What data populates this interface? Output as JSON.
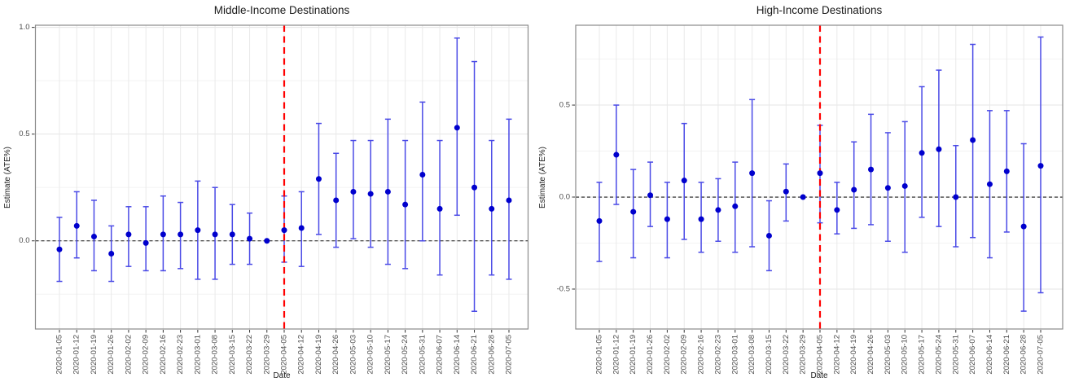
{
  "chart_data": [
    {
      "type": "scatter",
      "title": "Middle-Income Destinations",
      "xlabel": "Date",
      "ylabel": "Estimate (ATE%)",
      "x": [
        "2020-01-05",
        "2020-01-12",
        "2020-01-19",
        "2020-01-26",
        "2020-02-02",
        "2020-02-09",
        "2020-02-16",
        "2020-02-23",
        "2020-03-01",
        "2020-03-08",
        "2020-03-15",
        "2020-03-22",
        "2020-03-29",
        "2020-04-05",
        "2020-04-12",
        "2020-04-19",
        "2020-04-26",
        "2020-05-03",
        "2020-05-10",
        "2020-05-17",
        "2020-05-24",
        "2020-05-31",
        "2020-06-07",
        "2020-06-14",
        "2020-06-21",
        "2020-06-28",
        "2020-07-05"
      ],
      "series": [
        {
          "name": "ATE estimate",
          "values": [
            -0.04,
            0.07,
            0.02,
            -0.06,
            0.03,
            -0.01,
            0.03,
            0.03,
            0.05,
            0.03,
            0.03,
            0.01,
            0.0,
            0.05,
            0.06,
            0.29,
            0.19,
            0.23,
            0.22,
            0.23,
            0.17,
            0.31,
            0.15,
            0.53,
            0.25,
            0.15,
            0.19
          ]
        }
      ],
      "ci_low": [
        -0.19,
        -0.08,
        -0.14,
        -0.19,
        -0.12,
        -0.14,
        -0.14,
        -0.13,
        -0.18,
        -0.18,
        -0.11,
        -0.11,
        null,
        -0.1,
        -0.12,
        0.03,
        -0.03,
        0.01,
        -0.03,
        -0.11,
        -0.13,
        0.0,
        -0.16,
        0.12,
        -0.33,
        -0.16,
        -0.18
      ],
      "ci_high": [
        0.11,
        0.23,
        0.19,
        0.07,
        0.16,
        0.16,
        0.21,
        0.18,
        0.28,
        0.25,
        0.17,
        0.13,
        null,
        0.21,
        0.23,
        0.55,
        0.41,
        0.47,
        0.47,
        0.57,
        0.47,
        0.65,
        0.47,
        0.95,
        0.84,
        0.47,
        0.57
      ],
      "reference_date": "2020-03-29",
      "vline_date": "2020-04-05",
      "hline": 0,
      "ylim": [
        -0.413,
        1.01
      ],
      "yticks": [
        {
          "value": 0.0,
          "label": "0.0"
        },
        {
          "value": 0.5,
          "label": "0.5"
        },
        {
          "value": 1.0,
          "label": "1.0"
        }
      ],
      "yticks_minor": [
        -0.25,
        0.25,
        0.75
      ],
      "legend": "none",
      "grid": "on",
      "colors": {
        "point": "#0000CD",
        "error_bar": "#4A4AE6",
        "vline": "#FF0000",
        "hline": "#1A1A1A"
      }
    },
    {
      "type": "scatter",
      "title": "High-Income Destinations",
      "xlabel": "Date",
      "ylabel": "Estimate (ATE%)",
      "x": [
        "2020-01-05",
        "2020-01-12",
        "2020-01-19",
        "2020-01-26",
        "2020-02-02",
        "2020-02-09",
        "2020-02-16",
        "2020-02-23",
        "2020-03-01",
        "2020-03-08",
        "2020-03-15",
        "2020-03-22",
        "2020-03-29",
        "2020-04-05",
        "2020-04-12",
        "2020-04-19",
        "2020-04-26",
        "2020-05-03",
        "2020-05-10",
        "2020-05-17",
        "2020-05-24",
        "2020-05-31",
        "2020-06-07",
        "2020-06-14",
        "2020-06-21",
        "2020-06-28",
        "2020-07-05"
      ],
      "series": [
        {
          "name": "ATE estimate",
          "values": [
            -0.13,
            0.23,
            -0.08,
            0.01,
            -0.12,
            0.09,
            -0.12,
            -0.07,
            -0.05,
            0.13,
            -0.21,
            0.03,
            0.0,
            0.13,
            -0.07,
            0.04,
            0.15,
            0.05,
            0.06,
            0.24,
            0.26,
            0.0,
            0.31,
            0.07,
            0.14,
            -0.16,
            0.17
          ]
        }
      ],
      "ci_low": [
        -0.35,
        -0.04,
        -0.33,
        -0.16,
        -0.33,
        -0.23,
        -0.3,
        -0.24,
        -0.3,
        -0.27,
        -0.4,
        -0.13,
        null,
        -0.14,
        -0.2,
        -0.17,
        -0.15,
        -0.24,
        -0.3,
        -0.11,
        -0.16,
        -0.27,
        -0.22,
        -0.33,
        -0.19,
        -0.62,
        -0.52
      ],
      "ci_high": [
        0.08,
        0.5,
        0.15,
        0.19,
        0.08,
        0.4,
        0.08,
        0.1,
        0.19,
        0.53,
        -0.02,
        0.18,
        null,
        0.39,
        0.08,
        0.3,
        0.45,
        0.35,
        0.41,
        0.6,
        0.69,
        0.28,
        0.83,
        0.47,
        0.47,
        0.29,
        0.87
      ],
      "reference_date": "2020-03-29",
      "vline_date": "2020-04-05",
      "hline": 0,
      "ylim": [
        -0.717,
        0.934
      ],
      "yticks": [
        {
          "value": -0.5,
          "label": "-0.5"
        },
        {
          "value": 0.0,
          "label": "0.0"
        },
        {
          "value": 0.5,
          "label": "0.5"
        }
      ],
      "yticks_minor": [
        -0.25,
        0.25,
        0.75
      ],
      "legend": "none",
      "grid": "on",
      "colors": {
        "point": "#0000CD",
        "error_bar": "#4A4AE6",
        "vline": "#FF0000",
        "hline": "#1A1A1A"
      }
    }
  ]
}
